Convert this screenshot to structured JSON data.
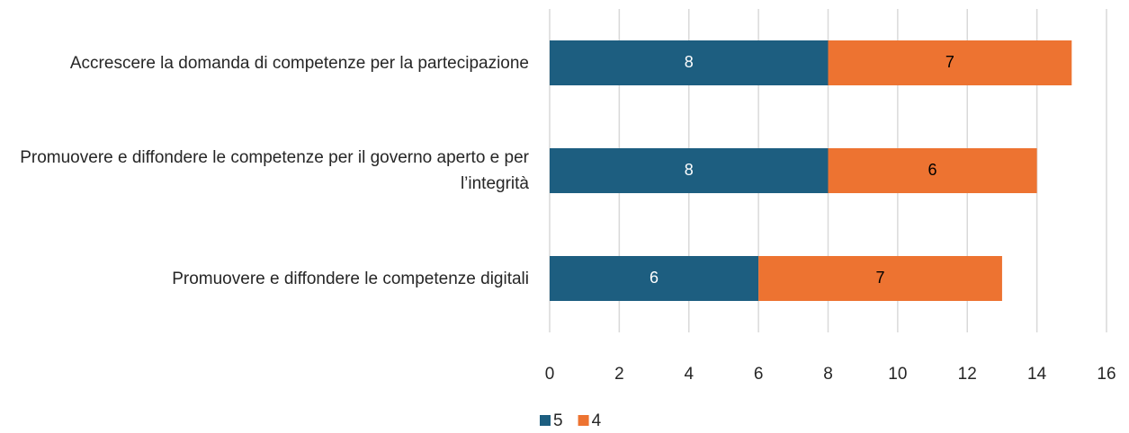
{
  "chart_data": {
    "type": "stacked-barh",
    "categories": [
      "Accrescere la domanda di competenze per la partecipazione",
      "Promuovere e diffondere le competenze per il governo aperto e per l’integrità",
      "Promuovere e diffondere le competenze digitali"
    ],
    "series": [
      {
        "name": "5",
        "color": "#1d5e80",
        "values": [
          8,
          8,
          6
        ]
      },
      {
        "name": "4",
        "color": "#ed7331",
        "values": [
          7,
          6,
          7
        ]
      }
    ],
    "xlim": [
      0,
      16
    ],
    "xticks": [
      0,
      2,
      4,
      6,
      8,
      10,
      12,
      14,
      16
    ],
    "grid": true,
    "legend": "bottom"
  }
}
